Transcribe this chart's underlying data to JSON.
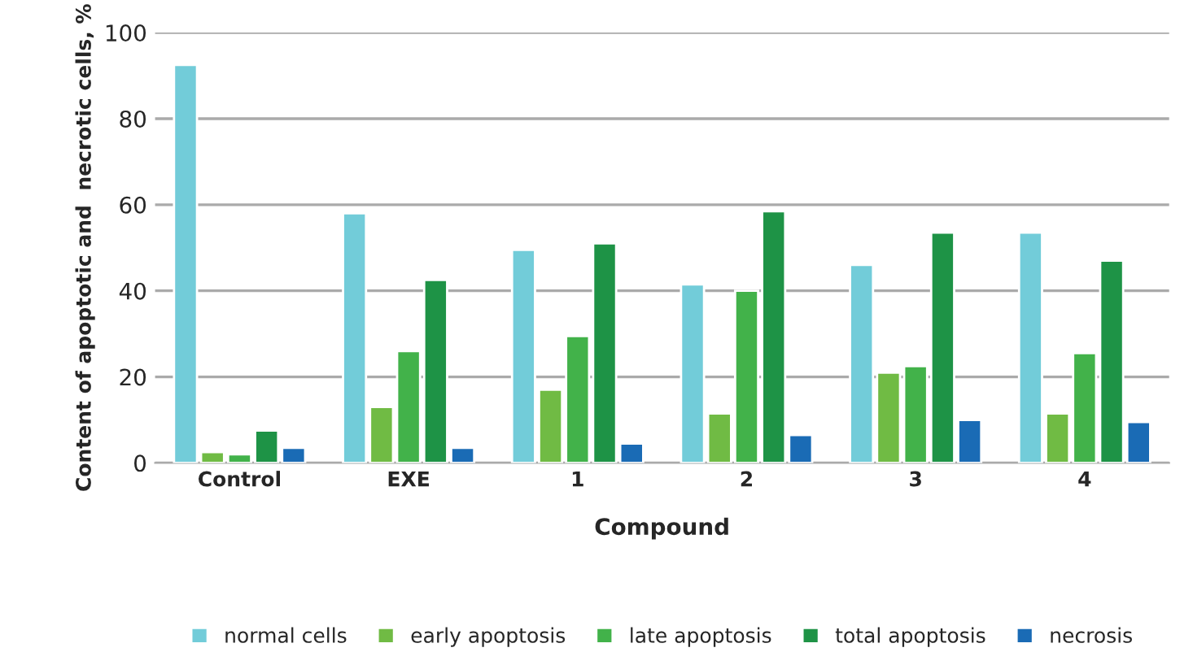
{
  "chart_data": {
    "type": "bar",
    "xlabel": "Compound",
    "ylabel": "Content of apoptotic and  necrotic cells, %",
    "categories": [
      "Control",
      "EXE",
      "1",
      "2",
      "3",
      "4"
    ],
    "series": [
      {
        "name": "normal cells",
        "color": "#72ccd9",
        "values": [
          92.5,
          58,
          49.5,
          41.5,
          46,
          53.5
        ]
      },
      {
        "name": "early apoptosis",
        "color": "#70bb44",
        "values": [
          2.5,
          13,
          17,
          11.5,
          21,
          11.5
        ]
      },
      {
        "name": "late apoptosis",
        "color": "#42b24a",
        "values": [
          2,
          26,
          29.5,
          40,
          22.5,
          25.5
        ]
      },
      {
        "name": "total apoptosis",
        "color": "#1e9346",
        "values": [
          7.5,
          42.5,
          51,
          58.5,
          53.5,
          47
        ]
      },
      {
        "name": "necrosis",
        "color": "#1a6bb5",
        "values": [
          3.5,
          3.5,
          4.5,
          6.5,
          10,
          9.5
        ]
      }
    ],
    "ylim": [
      0,
      100
    ],
    "yticks": [
      0,
      20,
      40,
      60,
      80,
      100
    ],
    "grid": "y",
    "legend": "bottom"
  }
}
